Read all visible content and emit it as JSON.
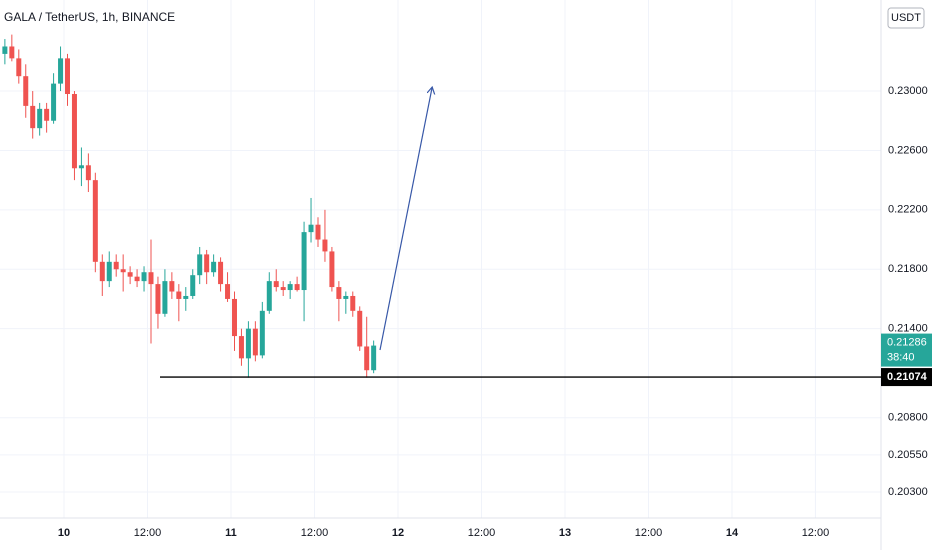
{
  "chart_data": {
    "type": "candlestick",
    "title": "GALA / TetherUS, 1h, BINANCE",
    "currency": "USDT",
    "ylim": [
      0.20125,
      0.23613
    ],
    "yticks": [
      {
        "value": 0.203,
        "label": "0.20300"
      },
      {
        "value": 0.2055,
        "label": "0.20550"
      },
      {
        "value": 0.208,
        "label": "0.20800"
      },
      {
        "value": 0.214,
        "label": "0.21400"
      },
      {
        "value": 0.218,
        "label": "0.21800"
      },
      {
        "value": 0.222,
        "label": "0.22200"
      },
      {
        "value": 0.226,
        "label": "0.22600"
      },
      {
        "value": 0.23,
        "label": "0.23000"
      }
    ],
    "xticks": [
      "10",
      "12:00",
      "11",
      "12:00",
      "12",
      "12:00",
      "13",
      "12:00",
      "14",
      "12:00"
    ],
    "grid": true,
    "up_color": "#26a69a",
    "down_color": "#ef5350",
    "open": [
      0.2325,
      0.233,
      0.2322,
      0.231,
      0.229,
      0.2275,
      0.2288,
      0.228,
      0.2305,
      0.2322,
      0.2298,
      0.2248,
      0.225,
      0.224,
      0.2185,
      0.2172,
      0.2185,
      0.218,
      0.2178,
      0.2175,
      0.2172,
      0.2178,
      0.217,
      0.215,
      0.2172,
      0.2165,
      0.216,
      0.2162,
      0.2176,
      0.219,
      0.2178,
      0.2185,
      0.217,
      0.216,
      0.2135,
      0.212,
      0.214,
      0.2122,
      0.2152,
      0.2172,
      0.2168,
      0.2166,
      0.217,
      0.2166,
      0.2205,
      0.221,
      0.22,
      0.2192,
      0.2168,
      0.216,
      0.2162,
      0.2152,
      0.2128,
      0.2112
    ],
    "high": [
      0.2335,
      0.2338,
      0.2328,
      0.2318,
      0.23,
      0.2292,
      0.2292,
      0.2312,
      0.233,
      0.2325,
      0.23,
      0.2262,
      0.2258,
      0.2245,
      0.219,
      0.2192,
      0.219,
      0.219,
      0.2182,
      0.218,
      0.2182,
      0.22,
      0.2175,
      0.218,
      0.2178,
      0.217,
      0.2168,
      0.218,
      0.2195,
      0.2193,
      0.219,
      0.2188,
      0.2178,
      0.2165,
      0.214,
      0.2145,
      0.2145,
      0.2158,
      0.2178,
      0.218,
      0.2172,
      0.2172,
      0.2175,
      0.2212,
      0.2228,
      0.2215,
      0.222,
      0.2195,
      0.2172,
      0.2165,
      0.2165,
      0.2155,
      0.2148,
      0.2132
    ],
    "low": [
      0.2318,
      0.232,
      0.2305,
      0.2282,
      0.2268,
      0.227,
      0.2272,
      0.2278,
      0.23,
      0.229,
      0.224,
      0.2236,
      0.2232,
      0.2178,
      0.2162,
      0.2168,
      0.2175,
      0.2165,
      0.217,
      0.2168,
      0.2165,
      0.213,
      0.214,
      0.2148,
      0.216,
      0.2145,
      0.2152,
      0.216,
      0.217,
      0.217,
      0.2175,
      0.2165,
      0.2158,
      0.2125,
      0.2115,
      0.2107,
      0.2118,
      0.212,
      0.215,
      0.2165,
      0.2162,
      0.216,
      0.2165,
      0.2145,
      0.2198,
      0.2195,
      0.2185,
      0.2165,
      0.2145,
      0.215,
      0.2148,
      0.2125,
      0.2107,
      0.211
    ],
    "close": [
      0.233,
      0.2322,
      0.231,
      0.229,
      0.2275,
      0.2288,
      0.228,
      0.2305,
      0.2322,
      0.2298,
      0.2248,
      0.225,
      0.224,
      0.2185,
      0.2172,
      0.2185,
      0.218,
      0.2178,
      0.2175,
      0.2172,
      0.2178,
      0.217,
      0.215,
      0.2172,
      0.2165,
      0.216,
      0.2162,
      0.2176,
      0.219,
      0.2178,
      0.2185,
      0.217,
      0.216,
      0.2135,
      0.212,
      0.214,
      0.2122,
      0.2152,
      0.2172,
      0.2168,
      0.2166,
      0.217,
      0.2166,
      0.2205,
      0.221,
      0.22,
      0.2192,
      0.2168,
      0.216,
      0.2162,
      0.2152,
      0.2128,
      0.2112,
      0.21286
    ],
    "current_price": 0.21286,
    "countdown": "38:40",
    "hline": 0.21074
  }
}
